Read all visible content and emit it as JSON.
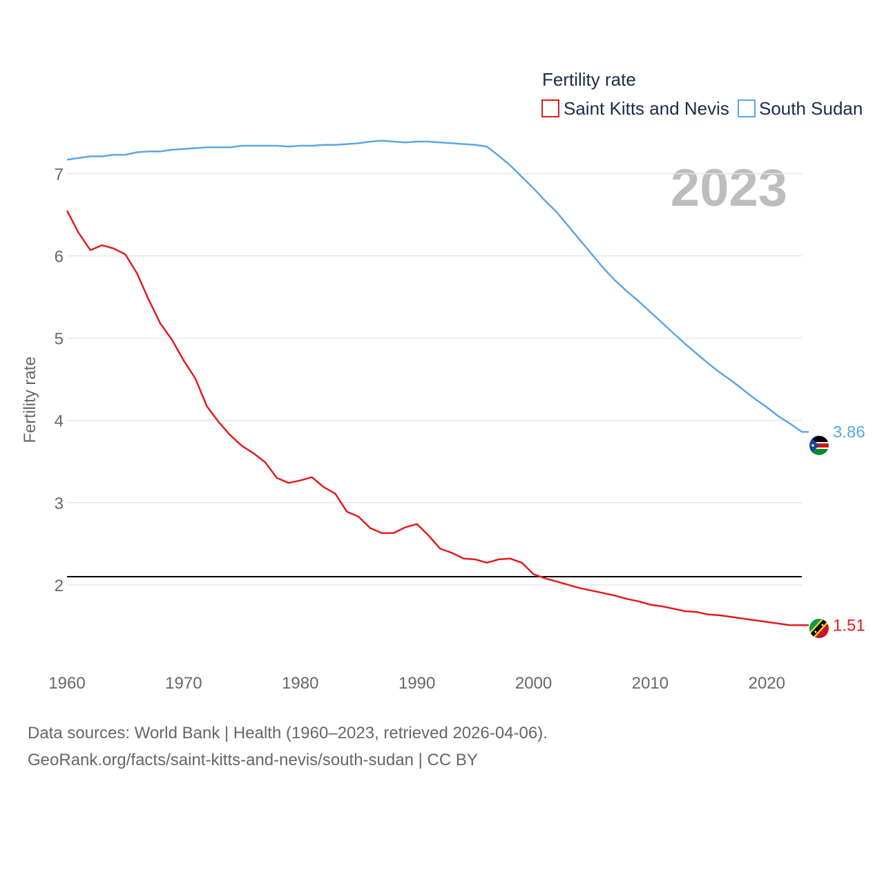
{
  "chart_data": {
    "type": "line",
    "legend_title": "Fertility rate",
    "legend_position": "top-right",
    "ylabel": "Fertility rate",
    "xlabel": "",
    "year_label": "2023",
    "xlim": [
      1960,
      2023
    ],
    "ylim": [
      1.0,
      7.6
    ],
    "x_ticks": [
      1960,
      1970,
      1980,
      1990,
      2000,
      2010,
      2020
    ],
    "y_ticks": [
      2,
      3,
      4,
      5,
      6,
      7
    ],
    "reference_line": {
      "value": 2.1,
      "color": "#000000"
    },
    "x": [
      1960,
      1961,
      1962,
      1963,
      1964,
      1965,
      1966,
      1967,
      1968,
      1969,
      1970,
      1971,
      1972,
      1973,
      1974,
      1975,
      1976,
      1977,
      1978,
      1979,
      1980,
      1981,
      1982,
      1983,
      1984,
      1985,
      1986,
      1987,
      1988,
      1989,
      1990,
      1991,
      1992,
      1993,
      1994,
      1995,
      1996,
      1997,
      1998,
      1999,
      2000,
      2001,
      2002,
      2003,
      2004,
      2005,
      2006,
      2007,
      2008,
      2009,
      2010,
      2011,
      2012,
      2013,
      2014,
      2015,
      2016,
      2017,
      2018,
      2019,
      2020,
      2021,
      2022,
      2023
    ],
    "series": [
      {
        "name": "Saint Kitts and Nevis",
        "color": "#e31a1c",
        "end_value": "1.51",
        "values": [
          6.55,
          6.28,
          6.07,
          6.13,
          6.09,
          6.02,
          5.79,
          5.47,
          5.18,
          4.98,
          4.73,
          4.51,
          4.17,
          3.98,
          3.82,
          3.69,
          3.6,
          3.49,
          3.3,
          3.24,
          3.27,
          3.31,
          3.19,
          3.11,
          2.89,
          2.83,
          2.69,
          2.63,
          2.63,
          2.7,
          2.74,
          2.6,
          2.44,
          2.39,
          2.32,
          2.31,
          2.27,
          2.31,
          2.32,
          2.27,
          2.13,
          2.08,
          2.04,
          2.0,
          1.96,
          1.93,
          1.9,
          1.87,
          1.83,
          1.8,
          1.76,
          1.74,
          1.71,
          1.68,
          1.67,
          1.64,
          1.63,
          1.61,
          1.59,
          1.57,
          1.55,
          1.53,
          1.51,
          1.51
        ]
      },
      {
        "name": "South Sudan",
        "color": "#5aa6e6",
        "end_value": "3.86",
        "values": [
          7.17,
          7.19,
          7.21,
          7.21,
          7.23,
          7.23,
          7.26,
          7.27,
          7.27,
          7.29,
          7.3,
          7.31,
          7.32,
          7.32,
          7.32,
          7.34,
          7.34,
          7.34,
          7.34,
          7.33,
          7.34,
          7.34,
          7.35,
          7.35,
          7.36,
          7.37,
          7.39,
          7.4,
          7.39,
          7.38,
          7.39,
          7.39,
          7.38,
          7.37,
          7.36,
          7.35,
          7.33,
          7.22,
          7.1,
          6.96,
          6.82,
          6.67,
          6.53,
          6.36,
          6.19,
          6.02,
          5.85,
          5.7,
          5.57,
          5.45,
          5.32,
          5.19,
          5.06,
          4.93,
          4.81,
          4.69,
          4.58,
          4.48,
          4.37,
          4.26,
          4.16,
          4.05,
          3.96,
          3.86
        ]
      }
    ]
  },
  "source": {
    "line1": "Data sources: World Bank | Health (1960–2023, retrieved 2026-04-06).",
    "line2": "GeoRank.org/facts/saint-kitts-and-nevis/south-sudan | CC BY"
  },
  "icons": {
    "flag_1": "saint-kitts-and-nevis-flag-icon",
    "flag_2": "south-sudan-flag-icon"
  }
}
